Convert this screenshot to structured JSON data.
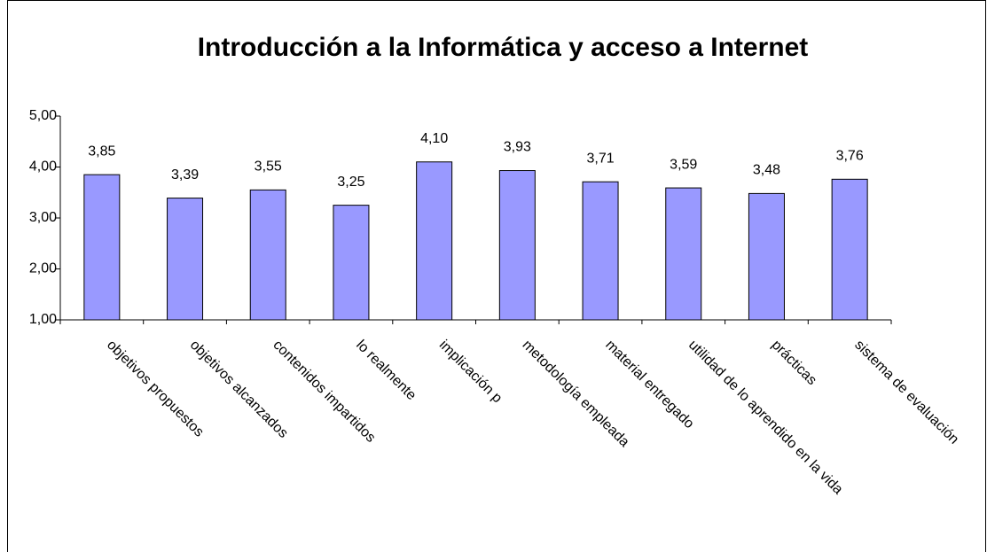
{
  "chart_data": {
    "type": "bar",
    "title": "Introducción a la Informática y acceso a Internet",
    "categories": [
      "objetivos propuestos",
      "objetivos alcanzados",
      "contenidos impartidos",
      "lo realmente",
      "implicación p",
      "metodología empleada",
      "material entregado",
      "utilidad de lo aprendido en la vida",
      "prácticas",
      "sistema de evaluación"
    ],
    "values": [
      3.85,
      3.39,
      3.55,
      3.25,
      4.1,
      3.93,
      3.71,
      3.59,
      3.48,
      3.76
    ],
    "value_labels": [
      "3,85",
      "3,39",
      "3,55",
      "3,25",
      "4,10",
      "3,93",
      "3,71",
      "3,59",
      "3,48",
      "3,76"
    ],
    "color": "#9999ff",
    "ylim": [
      1,
      5
    ],
    "yticks": [
      {
        "value": 1,
        "label": "1,00"
      },
      {
        "value": 2,
        "label": "2,00"
      },
      {
        "value": 3,
        "label": "3,00"
      },
      {
        "value": 4,
        "label": "4,00"
      },
      {
        "value": 5,
        "label": "5,00"
      }
    ],
    "grid": false
  }
}
